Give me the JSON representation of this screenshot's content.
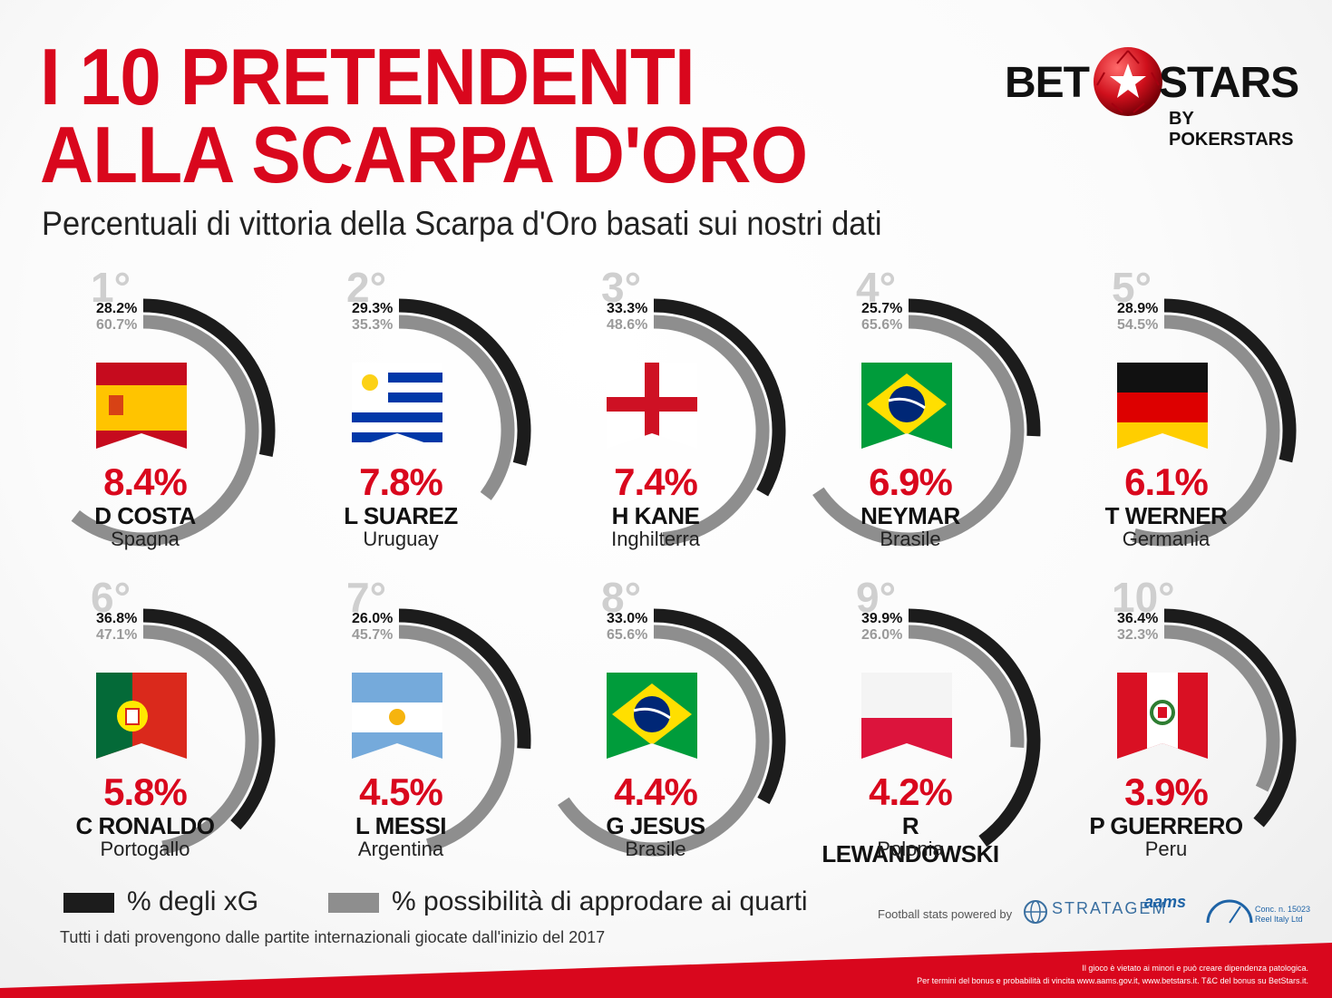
{
  "header": {
    "title_line1": "I 10 PRETENDENTI",
    "title_line2": "ALLA SCARPA D'ORO",
    "subtitle": "Percentuali di vittoria della Scarpa d'Oro basati sui nostri dati"
  },
  "logo": {
    "bet": "BET",
    "stars": "STARS",
    "by": "BY POKERSTARS"
  },
  "colors": {
    "accent_red": "#d9071d",
    "xg_arc": "#1c1c1c",
    "quarters_arc": "#8e8e8e"
  },
  "chart_data": {
    "type": "radial-bar",
    "series": [
      {
        "name": "% degli xG",
        "values": [
          28.2,
          29.3,
          33.3,
          25.7,
          28.9,
          36.8,
          26.0,
          33.0,
          39.9,
          36.4
        ]
      },
      {
        "name": "% possibilità di approdare ai quarti",
        "values": [
          60.7,
          35.3,
          48.6,
          65.6,
          54.5,
          47.1,
          45.7,
          65.6,
          26.0,
          32.3
        ]
      }
    ],
    "players": [
      {
        "rank": "1°",
        "xg": "28.2%",
        "quarters": "60.7%",
        "win": "8.4%",
        "name": "D COSTA",
        "country": "Spagna",
        "flag": "spain"
      },
      {
        "rank": "2°",
        "xg": "29.3%",
        "quarters": "35.3%",
        "win": "7.8%",
        "name": "L SUAREZ",
        "country": "Uruguay",
        "flag": "uruguay"
      },
      {
        "rank": "3°",
        "xg": "33.3%",
        "quarters": "48.6%",
        "win": "7.4%",
        "name": "H KANE",
        "country": "Inghilterra",
        "flag": "england"
      },
      {
        "rank": "4°",
        "xg": "25.7%",
        "quarters": "65.6%",
        "win": "6.9%",
        "name": "NEYMAR",
        "country": "Brasile",
        "flag": "brazil"
      },
      {
        "rank": "5°",
        "xg": "28.9%",
        "quarters": "54.5%",
        "win": "6.1%",
        "name": "T WERNER",
        "country": "Germania",
        "flag": "germany"
      },
      {
        "rank": "6°",
        "xg": "36.8%",
        "quarters": "47.1%",
        "win": "5.8%",
        "name": "C RONALDO",
        "country": "Portogallo",
        "flag": "portugal"
      },
      {
        "rank": "7°",
        "xg": "26.0%",
        "quarters": "45.7%",
        "win": "4.5%",
        "name": "L MESSI",
        "country": "Argentina",
        "flag": "argentina"
      },
      {
        "rank": "8°",
        "xg": "33.0%",
        "quarters": "65.6%",
        "win": "4.4%",
        "name": "G JESUS",
        "country": "Brasile",
        "flag": "brazil"
      },
      {
        "rank": "9°",
        "xg": "39.9%",
        "quarters": "26.0%",
        "win": "4.2%",
        "name": "R LEWANDOWSKI",
        "country": "Polonia",
        "flag": "poland"
      },
      {
        "rank": "10°",
        "xg": "36.4%",
        "quarters": "32.3%",
        "win": "3.9%",
        "name": "P GUERRERO",
        "country": "Peru",
        "flag": "peru"
      }
    ]
  },
  "legend": {
    "xg_label": "% degli xG",
    "quarters_label": "% possibilità di approdare ai quarti"
  },
  "footer": {
    "note": "Tutti i dati provengono dalle partite internazionali giocate dall'inizio del 2017",
    "powered_by": "Football stats powered by",
    "stratagem": "STRATAGEM",
    "aams": "aams",
    "conc_line1": "Conc. n. 15023",
    "conc_line2": "Reel Italy Ltd",
    "legal_line1": "Il gioco è vietato ai minori e può creare dipendenza patologica.",
    "legal_line2": "Per termini del bonus e probabilità di vincita www.aams.gov.it, www.betstars.it. T&C del bonus su BetStars.it."
  }
}
